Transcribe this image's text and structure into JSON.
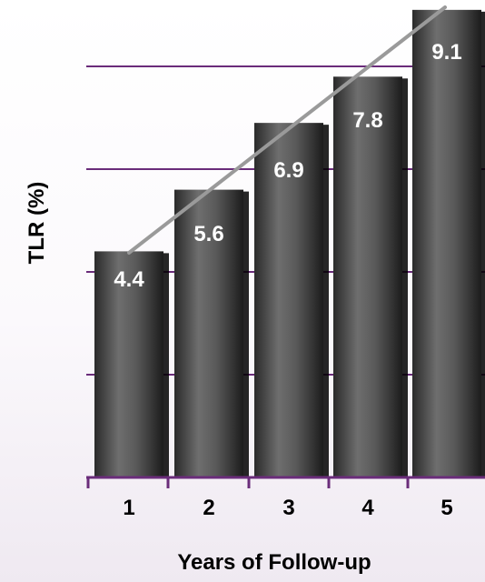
{
  "chart_data": {
    "type": "bar",
    "title": "",
    "xlabel": "Years of Follow-up",
    "ylabel": "TLR (%)",
    "categories": [
      "1",
      "2",
      "3",
      "4",
      "5"
    ],
    "values": [
      4.4,
      5.6,
      6.9,
      7.8,
      9.1
    ],
    "data_labels": [
      "4.4",
      "5.6",
      "6.9",
      "7.8",
      "9.1"
    ],
    "ylim": [
      0,
      9.2
    ],
    "grid": true,
    "legend": "none",
    "overlay": "trend-line",
    "colors": {
      "bar": "#4a4a4a",
      "grid": "#6a2c7a",
      "axis": "#6a2c7a",
      "trend": "#9a9a9a",
      "label_text": "#ffffff",
      "axis_text": "#000000"
    }
  }
}
